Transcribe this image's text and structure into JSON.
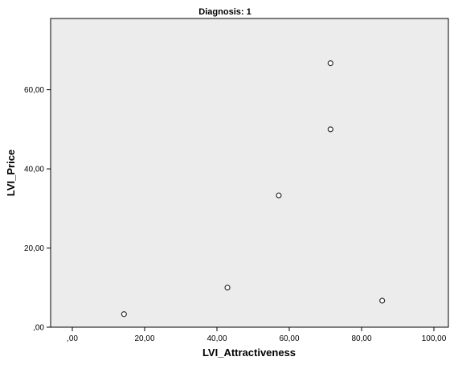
{
  "chart_data": {
    "type": "scatter",
    "title": "Diagnosis: 1",
    "xlabel": "LVI_Attractiveness",
    "ylabel": "LVI_Price",
    "xlim": [
      -6,
      104
    ],
    "ylim": [
      0,
      78
    ],
    "xticks": [
      {
        "value": 0,
        "label": ",00"
      },
      {
        "value": 20,
        "label": "20,00"
      },
      {
        "value": 40,
        "label": "40,00"
      },
      {
        "value": 60,
        "label": "60,00"
      },
      {
        "value": 80,
        "label": "80,00"
      },
      {
        "value": 100,
        "label": "100,00"
      }
    ],
    "yticks": [
      {
        "value": 0,
        "label": ",00"
      },
      {
        "value": 20,
        "label": "20,00"
      },
      {
        "value": 40,
        "label": "40,00"
      },
      {
        "value": 60,
        "label": "60,00"
      }
    ],
    "points": [
      {
        "x": 14.3,
        "y": 3.3
      },
      {
        "x": 42.9,
        "y": 10.0
      },
      {
        "x": 57.1,
        "y": 33.3
      },
      {
        "x": 71.4,
        "y": 50.0
      },
      {
        "x": 71.4,
        "y": 66.7
      },
      {
        "x": 85.7,
        "y": 6.7
      }
    ],
    "grid": false,
    "colors": {
      "plot_background": "#ececec",
      "plot_border": "#000000",
      "marker_stroke": "#333333",
      "marker_fill": "#ffffff"
    }
  }
}
